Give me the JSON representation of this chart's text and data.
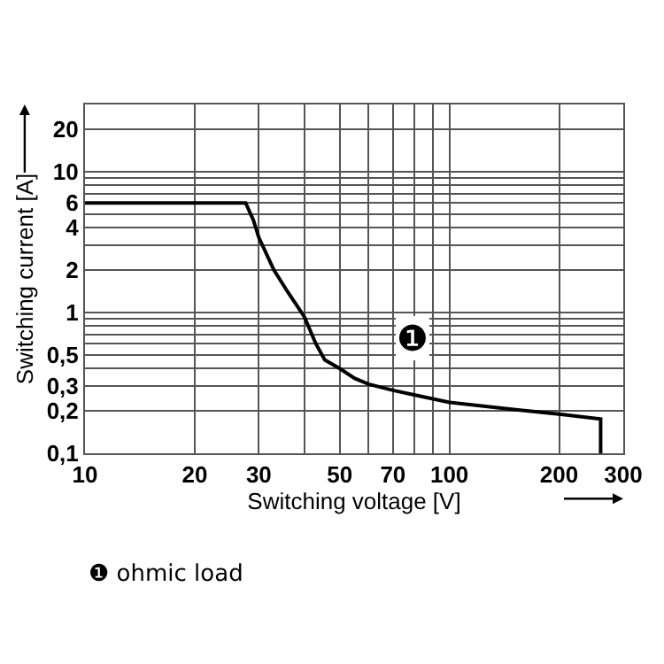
{
  "chart_data": {
    "type": "line",
    "xlabel": "Switching voltage [V]",
    "ylabel": "Switching current [A]",
    "log": "xy",
    "grid": true,
    "legend": false,
    "marker": "none",
    "line_style": "solid",
    "x": [
      10,
      27.6,
      29,
      30,
      33,
      36,
      40,
      43,
      45.5,
      50,
      55,
      60,
      70,
      80,
      100,
      150,
      200,
      260,
      260
    ],
    "series": [
      {
        "color": "#000000",
        "values": [
          6,
          6,
          4.5,
          3.4,
          2,
          1.4,
          0.93,
          0.6,
          0.46,
          0.4,
          0.34,
          0.31,
          0.28,
          0.26,
          0.23,
          0.205,
          0.19,
          0.175,
          0.1
        ]
      }
    ],
    "xlim": [
      10,
      300
    ],
    "xticks": [
      10,
      20,
      30,
      {
        "value": 40,
        "label": null
      },
      50,
      {
        "value": 60,
        "label": null
      },
      70,
      {
        "value": 80,
        "label": null
      },
      {
        "value": 90,
        "label": null
      },
      100,
      200,
      300
    ],
    "ylim": [
      0.1,
      30
    ],
    "yticks": [
      {
        "value": 0.1,
        "label": "0,1"
      },
      {
        "value": 0.2,
        "label": "0,2"
      },
      {
        "value": 0.3,
        "label": "0,3"
      },
      {
        "value": 0.4,
        "label": null
      },
      {
        "value": 0.5,
        "label": "0,5"
      },
      {
        "value": 0.6,
        "label": null
      },
      {
        "value": 0.7,
        "label": null
      },
      {
        "value": 0.8,
        "label": null
      },
      {
        "value": 0.9,
        "label": null
      },
      1,
      2,
      {
        "value": 3,
        "label": null
      },
      4,
      {
        "value": 5,
        "label": null
      },
      6,
      {
        "value": 7,
        "label": null
      },
      {
        "value": 8,
        "label": null
      },
      {
        "value": 9,
        "label": null
      },
      10,
      20
    ],
    "annotations": [
      "❶",
      "❶ ohmic load"
    ]
  }
}
